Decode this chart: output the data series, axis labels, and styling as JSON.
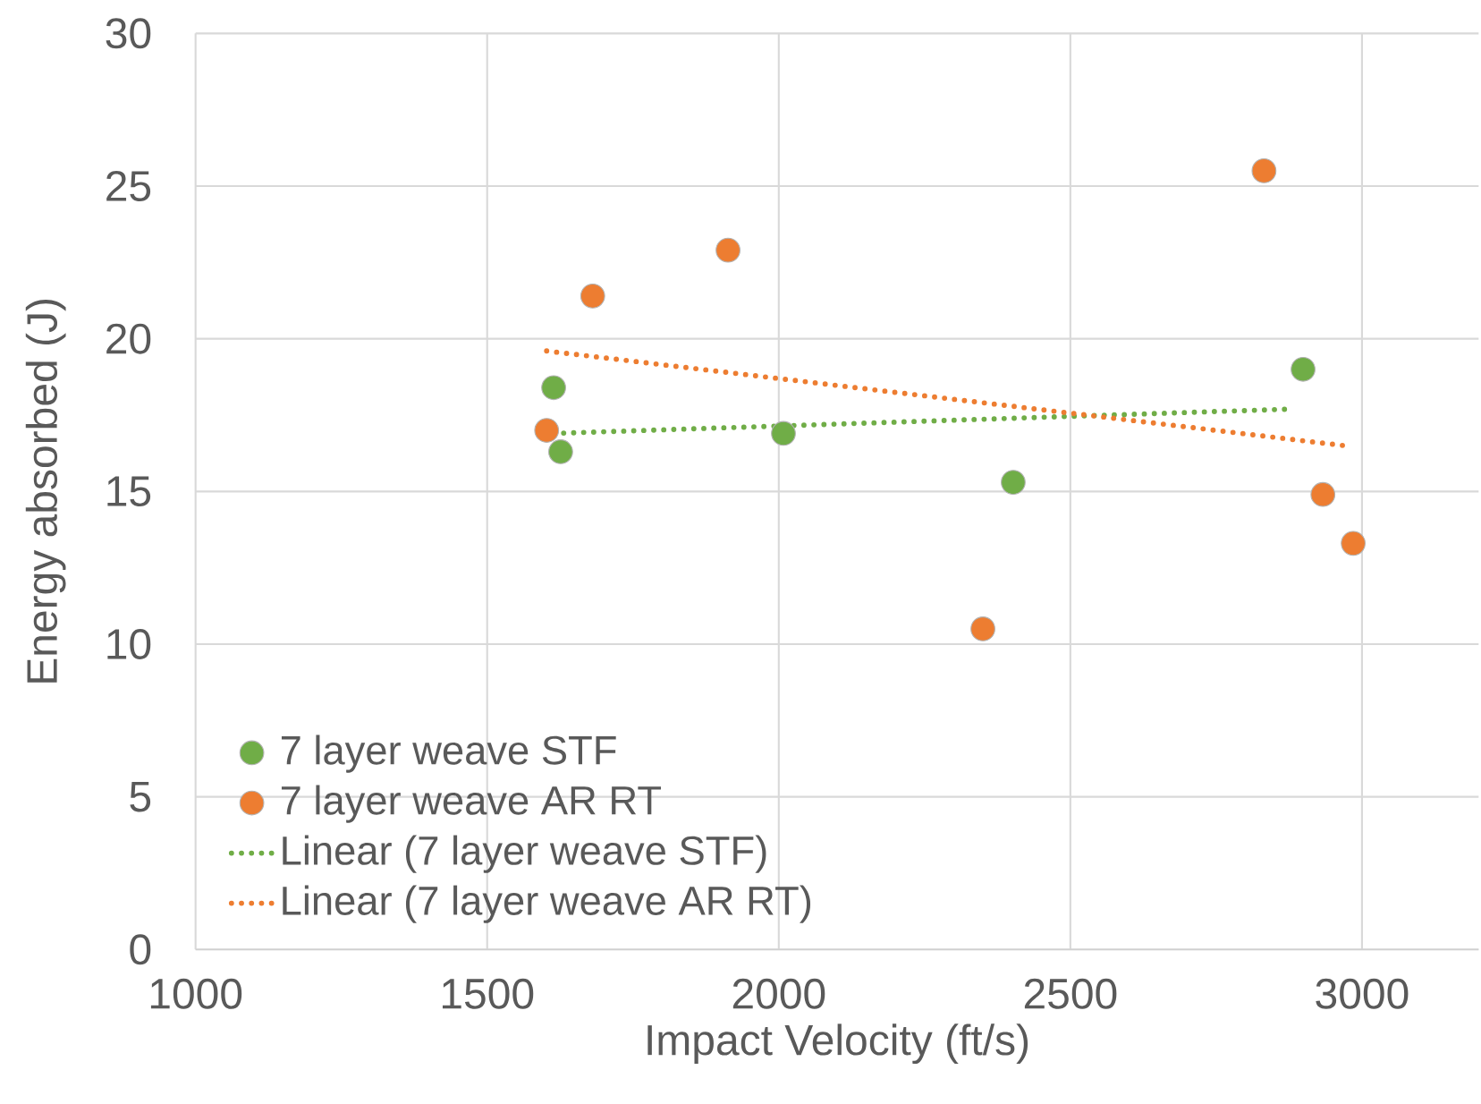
{
  "chart_data": {
    "type": "scatter",
    "xlabel": "Impact Velocity (ft/s)",
    "ylabel": "Energy absorbed (J)",
    "xlim": [
      1000,
      3200
    ],
    "xticks": [
      1000,
      1500,
      2000,
      2500,
      3000
    ],
    "ylim": [
      0,
      30
    ],
    "yticks": [
      0,
      5,
      10,
      15,
      20,
      25,
      30
    ],
    "grid": true,
    "legend": "bottom left",
    "series": [
      {
        "name": "7 layer weave STF",
        "type": "scatter",
        "marker": "circle",
        "color": "#70ad47",
        "x": [
          1614,
          1626,
          2008,
          2402,
          2899
        ],
        "values": [
          18.4,
          16.3,
          16.9,
          15.3,
          19.0
        ]
      },
      {
        "name": "7 layer weave AR RT",
        "type": "scatter",
        "marker": "circle",
        "color": "#ed7d31",
        "x": [
          1602,
          1681,
          1913,
          2350,
          2832,
          2933,
          2985
        ],
        "values": [
          17.0,
          21.4,
          22.9,
          10.5,
          25.5,
          14.9,
          13.3
        ]
      },
      {
        "name": "Linear (7 layer weave STF)",
        "type": "line",
        "color": "#70ad47",
        "line_style": "dotted",
        "marker": "none",
        "x": [
          1614,
          2881
        ],
        "values": [
          16.9,
          17.7
        ]
      },
      {
        "name": "Linear (7 layer weave AR RT)",
        "type": "line",
        "color": "#ed7d31",
        "line_style": "dotted",
        "marker": "none",
        "x": [
          1602,
          2970
        ],
        "values": [
          19.6,
          16.5
        ]
      }
    ]
  }
}
